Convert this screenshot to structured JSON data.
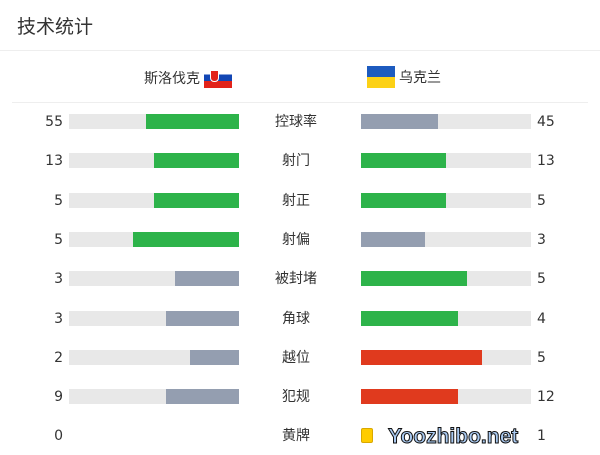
{
  "title": "技术统计",
  "home": {
    "name": "斯洛伐克",
    "flag": "slovakia-flag"
  },
  "away": {
    "name": "乌克兰",
    "flag": "ukraine-flag"
  },
  "colors": {
    "green": "#2db34a",
    "gray": "#949eb0",
    "red": "#e03a1e",
    "yellow": "#ffcc00",
    "track": "#e8e8e8"
  },
  "stats": [
    {
      "label": "控球率",
      "home": "55",
      "away": "45",
      "home_color": "green",
      "away_color": "gray"
    },
    {
      "label": "射门",
      "home": "13",
      "away": "13",
      "home_color": "green",
      "away_color": "green"
    },
    {
      "label": "射正",
      "home": "5",
      "away": "5",
      "home_color": "green",
      "away_color": "green"
    },
    {
      "label": "射偏",
      "home": "5",
      "away": "3",
      "home_color": "green",
      "away_color": "gray"
    },
    {
      "label": "被封堵",
      "home": "3",
      "away": "5",
      "home_color": "gray",
      "away_color": "green"
    },
    {
      "label": "角球",
      "home": "3",
      "away": "4",
      "home_color": "gray",
      "away_color": "green"
    },
    {
      "label": "越位",
      "home": "2",
      "away": "5",
      "home_color": "gray",
      "away_color": "red"
    },
    {
      "label": "犯规",
      "home": "9",
      "away": "12",
      "home_color": "gray",
      "away_color": "red"
    },
    {
      "label": "黄牌",
      "home": "0",
      "away": "1",
      "card": true
    }
  ],
  "watermark": "Yoozhibo.net"
}
